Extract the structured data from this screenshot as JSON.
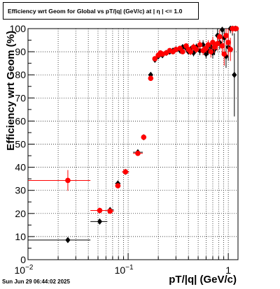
{
  "title": "Efficiency wrt Geom for Global vs pT/|q| (GeV/c) at |  η  | <= 1.0",
  "footer": "Sun Jun 29 06:44:02 2025",
  "chart_data": {
    "type": "scatter",
    "title": "Efficiency wrt Geom for Global vs pT/|q| (GeV/c) at |  η  | <= 1.0",
    "xlabel": "pT/|q| (GeV/c)",
    "ylabel": "Efficiency wrt Geom (%)",
    "x_scale": "log",
    "xlim": [
      0.01,
      1.25
    ],
    "ylim": [
      0,
      100
    ],
    "grid": true,
    "x_ticks": [
      {
        "value": 0.01,
        "label": "10",
        "exp": "−2"
      },
      {
        "value": 0.1,
        "label": "10",
        "exp": "−1"
      },
      {
        "value": 1,
        "label": "1",
        "exp": ""
      }
    ],
    "y_ticks": [
      0,
      10,
      20,
      30,
      40,
      50,
      60,
      70,
      80,
      90,
      100
    ],
    "series": [
      {
        "color": "#000000",
        "marker": "diamond",
        "points": [
          {
            "x": 0.025,
            "y": 8.5,
            "xlo": 0.01,
            "xhi": 0.042,
            "err": 0.5
          },
          {
            "x": 0.052,
            "y": 16.5,
            "xlo": 0.042,
            "xhi": 0.062,
            "err": 1.0
          },
          {
            "x": 0.066,
            "y": 21.5,
            "xlo": 0.062,
            "xhi": 0.072,
            "err": 1.2
          },
          {
            "x": 0.079,
            "y": 33.0,
            "xlo": 0.074,
            "xhi": 0.084,
            "err": 1.0
          },
          {
            "x": 0.094,
            "y": 38.0,
            "xlo": 0.087,
            "xhi": 0.102,
            "err": 0.8
          },
          {
            "x": 0.125,
            "y": 46.5,
            "xlo": 0.112,
            "xhi": 0.14,
            "err": 0.8
          },
          {
            "x": 0.143,
            "y": 53.0,
            "xlo": 0.14,
            "xhi": 0.148,
            "err": 0.8
          },
          {
            "x": 0.168,
            "y": 80.0,
            "xlo": 0.163,
            "xhi": 0.173,
            "err": 1.0
          },
          {
            "x": 0.185,
            "y": 86.5,
            "err": 1.0
          },
          {
            "x": 0.2,
            "y": 88.0,
            "err": 1.0
          },
          {
            "x": 0.21,
            "y": 89.0,
            "err": 1.0
          },
          {
            "x": 0.22,
            "y": 88.5,
            "err": 1.0
          },
          {
            "x": 0.24,
            "y": 89.5,
            "err": 1.0
          },
          {
            "x": 0.26,
            "y": 90.0,
            "err": 1.0
          },
          {
            "x": 0.28,
            "y": 90.5,
            "err": 1.0
          },
          {
            "x": 0.3,
            "y": 91.0,
            "err": 1.0
          },
          {
            "x": 0.33,
            "y": 90.5,
            "err": 1.0
          },
          {
            "x": 0.35,
            "y": 92.0,
            "err": 1.0
          },
          {
            "x": 0.38,
            "y": 91.5,
            "err": 1.0
          },
          {
            "x": 0.4,
            "y": 90.0,
            "err": 1.0
          },
          {
            "x": 0.42,
            "y": 91.0,
            "err": 1.5
          },
          {
            "x": 0.45,
            "y": 89.5,
            "err": 1.5
          },
          {
            "x": 0.48,
            "y": 92.0,
            "err": 1.5
          },
          {
            "x": 0.52,
            "y": 90.5,
            "err": 2.0
          },
          {
            "x": 0.56,
            "y": 93.0,
            "err": 2.0
          },
          {
            "x": 0.6,
            "y": 89.0,
            "err": 2.0
          },
          {
            "x": 0.63,
            "y": 90.5,
            "err": 2.0
          },
          {
            "x": 0.67,
            "y": 92.0,
            "err": 2.5
          },
          {
            "x": 0.7,
            "y": 89.5,
            "err": 2.5
          },
          {
            "x": 0.73,
            "y": 91.0,
            "err": 2.5
          },
          {
            "x": 0.78,
            "y": 97.0,
            "err": 3.0
          },
          {
            "x": 0.82,
            "y": 94.0,
            "err": 3.0
          },
          {
            "x": 0.87,
            "y": 99.5,
            "err": 3.0
          },
          {
            "x": 0.91,
            "y": 96.0,
            "err": 4.0
          },
          {
            "x": 0.95,
            "y": 88.0,
            "err": 5.0
          },
          {
            "x": 1.0,
            "y": 92.0,
            "err": 6.0
          },
          {
            "x": 1.05,
            "y": 100.0,
            "err": 2.0
          },
          {
            "x": 1.1,
            "y": 100.0,
            "err": 3.0
          },
          {
            "x": 1.15,
            "y": 80.0,
            "err": 18.0
          },
          {
            "x": 1.18,
            "y": 100.0,
            "err": 1.0
          }
        ]
      },
      {
        "color": "#ff0000",
        "marker": "circle",
        "points": [
          {
            "x": 0.025,
            "y": 34.3,
            "xlo": 0.01,
            "xhi": 0.042,
            "err": 4.5
          },
          {
            "x": 0.052,
            "y": 21.3,
            "xlo": 0.042,
            "xhi": 0.062,
            "err": 1.2
          },
          {
            "x": 0.066,
            "y": 21.0,
            "xlo": 0.062,
            "xhi": 0.072,
            "err": 1.2
          },
          {
            "x": 0.079,
            "y": 32.0,
            "xlo": 0.074,
            "xhi": 0.084,
            "err": 1.0
          },
          {
            "x": 0.094,
            "y": 38.0,
            "xlo": 0.087,
            "xhi": 0.102,
            "err": 0.8
          },
          {
            "x": 0.125,
            "y": 46.0,
            "xlo": 0.112,
            "xhi": 0.14,
            "err": 0.8
          },
          {
            "x": 0.143,
            "y": 53.0,
            "xlo": 0.14,
            "xhi": 0.148,
            "err": 0.8
          },
          {
            "x": 0.168,
            "y": 78.5,
            "xlo": 0.163,
            "xhi": 0.173,
            "err": 1.0
          },
          {
            "x": 0.185,
            "y": 87.0,
            "err": 1.0
          },
          {
            "x": 0.2,
            "y": 88.5,
            "err": 1.0
          },
          {
            "x": 0.21,
            "y": 89.5,
            "err": 1.0
          },
          {
            "x": 0.22,
            "y": 89.0,
            "err": 1.0
          },
          {
            "x": 0.24,
            "y": 89.5,
            "err": 1.0
          },
          {
            "x": 0.26,
            "y": 90.5,
            "err": 1.0
          },
          {
            "x": 0.28,
            "y": 90.0,
            "err": 1.0
          },
          {
            "x": 0.3,
            "y": 91.0,
            "err": 1.0
          },
          {
            "x": 0.33,
            "y": 91.5,
            "err": 1.0
          },
          {
            "x": 0.35,
            "y": 90.0,
            "err": 1.0
          },
          {
            "x": 0.38,
            "y": 92.5,
            "err": 1.0
          },
          {
            "x": 0.4,
            "y": 91.0,
            "err": 1.0
          },
          {
            "x": 0.42,
            "y": 90.0,
            "err": 1.5
          },
          {
            "x": 0.45,
            "y": 92.0,
            "err": 1.5
          },
          {
            "x": 0.48,
            "y": 91.0,
            "err": 1.5
          },
          {
            "x": 0.52,
            "y": 93.0,
            "err": 2.0
          },
          {
            "x": 0.56,
            "y": 90.5,
            "err": 2.0
          },
          {
            "x": 0.6,
            "y": 91.5,
            "err": 2.0
          },
          {
            "x": 0.63,
            "y": 93.0,
            "err": 2.0
          },
          {
            "x": 0.67,
            "y": 90.0,
            "err": 2.5
          },
          {
            "x": 0.7,
            "y": 94.0,
            "err": 2.5
          },
          {
            "x": 0.73,
            "y": 92.0,
            "err": 2.5
          },
          {
            "x": 0.78,
            "y": 93.5,
            "err": 3.0
          },
          {
            "x": 0.82,
            "y": 96.5,
            "err": 3.0
          },
          {
            "x": 0.87,
            "y": 92.5,
            "err": 4.0
          },
          {
            "x": 0.91,
            "y": 89.0,
            "err": 5.0
          },
          {
            "x": 0.95,
            "y": 97.0,
            "err": 4.0
          },
          {
            "x": 1.0,
            "y": 94.0,
            "err": 6.0
          },
          {
            "x": 1.05,
            "y": 91.0,
            "err": 5.0
          },
          {
            "x": 1.1,
            "y": 100.0,
            "err": 2.0
          },
          {
            "x": 1.15,
            "y": 100.0,
            "err": 1.0
          },
          {
            "x": 1.2,
            "y": 100.0,
            "err": 1.0
          }
        ]
      }
    ]
  }
}
